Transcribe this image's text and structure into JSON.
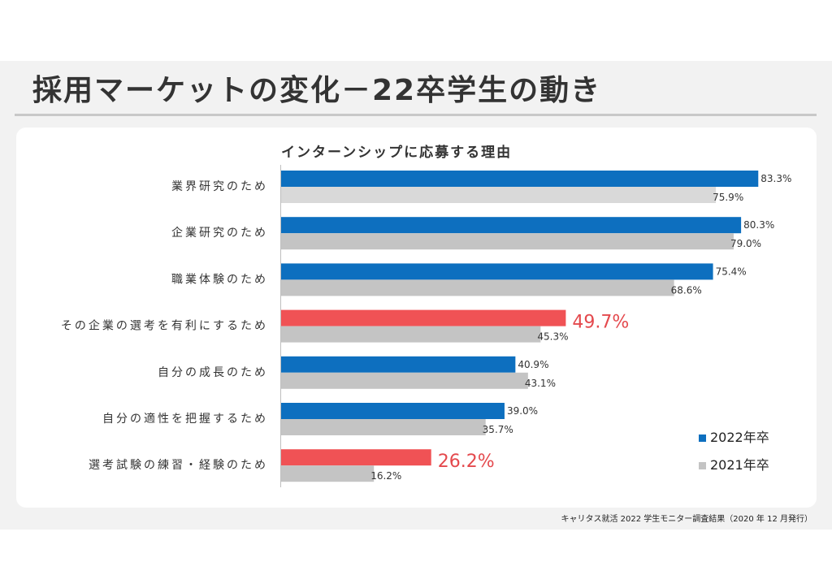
{
  "page": {
    "title": "採用マーケットの変化－22卒学生の動き",
    "footnote": "キャリタス就活 2022 学生モニター調査結果（2020 年 12 月発行）"
  },
  "colors": {
    "series_2022": "#0d6fbf",
    "series_2022_highlight": "#f05255",
    "series_2021": "#c4c4c4",
    "series_2021_first": "#d9d9d9",
    "highlight_label": "#e4494d"
  },
  "chart_data": {
    "type": "bar",
    "orientation": "horizontal",
    "title": "インターンシップに応募する理由",
    "categories": [
      "業界研究のため",
      "企業研究のため",
      "職業体験のため",
      "その企業の選考を有利にするため",
      "自分の成長のため",
      "自分の適性を把握するため",
      "選考試験の練習・経験のため"
    ],
    "series": [
      {
        "name": "2022年卒",
        "values": [
          83.3,
          80.3,
          75.4,
          49.7,
          40.9,
          39.0,
          26.2
        ]
      },
      {
        "name": "2021年卒",
        "values": [
          75.9,
          79.0,
          68.6,
          45.3,
          43.1,
          35.7,
          16.2
        ]
      }
    ],
    "value_labels": {
      "2022年卒": [
        "83.3%",
        "80.3%",
        "75.4%",
        "49.7%",
        "40.9%",
        "39.0%",
        "26.2%"
      ],
      "2021年卒": [
        "75.9%",
        "79.0%",
        "68.6%",
        "45.3%",
        "43.1%",
        "35.7%",
        "16.2%"
      ]
    },
    "highlighted_categories": [
      3,
      6
    ],
    "grid": false,
    "legend_position": "bottom-right"
  }
}
